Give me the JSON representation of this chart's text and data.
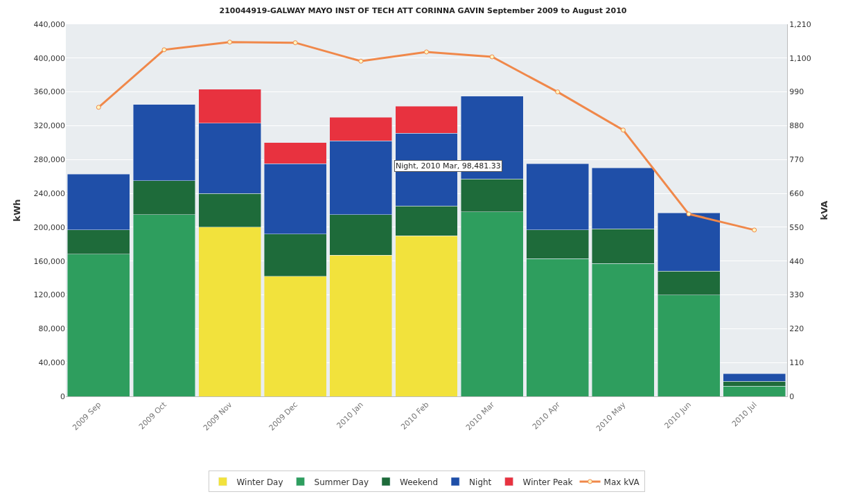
{
  "chart_data": {
    "type": "bar",
    "stacked": true,
    "title": "210044919-GALWAY MAYO INST OF TECH ATT CORINNA GAVIN September 2009 to August 2010",
    "ylabel": "kWh",
    "y2label": "kVA",
    "categories": [
      "2009 Sep",
      "2009 Oct",
      "2009 Nov",
      "2009 Dec",
      "2010 Jan",
      "2010 Feb",
      "2010 Mar",
      "2010 Apr",
      "2010 May",
      "2010 Jun",
      "2010 Jul"
    ],
    "series": [
      {
        "name": "Winter Day",
        "color": "#f2e23c",
        "values": [
          null,
          null,
          200000,
          142000,
          167000,
          190000,
          null,
          null,
          null,
          null,
          null
        ]
      },
      {
        "name": "Summer Day",
        "color": "#2e9e5e",
        "values": [
          168000,
          215000,
          null,
          null,
          null,
          null,
          218000,
          163000,
          157000,
          120000,
          12000
        ]
      },
      {
        "name": "Weekend",
        "color": "#1e6b3a",
        "values": [
          29000,
          40000,
          40000,
          50000,
          48000,
          35000,
          39000,
          34000,
          41000,
          28000,
          6000
        ]
      },
      {
        "name": "Night",
        "color": "#1f4fa8",
        "values": [
          66000,
          90000,
          83000,
          83000,
          87000,
          86000,
          98000,
          78000,
          72000,
          69000,
          9000
        ]
      },
      {
        "name": "Winter Peak",
        "color": "#e8323f",
        "values": [
          null,
          null,
          40000,
          25000,
          28000,
          32000,
          null,
          null,
          null,
          null,
          null
        ]
      },
      {
        "name": "Max kVA",
        "type": "line",
        "axis": "y2",
        "marker": "circle",
        "color": "#f0884a",
        "values": [
          940,
          1127,
          1152,
          1150,
          1090,
          1120,
          1104,
          990,
          866,
          593,
          541
        ]
      }
    ],
    "ylim": [
      0,
      440000
    ],
    "yticks": [
      0,
      {
        "value": 40000,
        "label": "40,000"
      },
      {
        "value": 80000,
        "label": "80,000"
      },
      {
        "value": 120000,
        "label": "120,000"
      },
      {
        "value": 160000,
        "label": "160,000"
      },
      {
        "value": 200000,
        "label": "200,000"
      },
      {
        "value": 240000,
        "label": "240,000"
      },
      {
        "value": 280000,
        "label": "280,000"
      },
      {
        "value": 320000,
        "label": "320,000"
      },
      {
        "value": 360000,
        "label": "360,000"
      },
      {
        "value": 400000,
        "label": "400,000"
      },
      {
        "value": 440000,
        "label": "440,000"
      }
    ],
    "y2lim": [
      0,
      1210
    ],
    "y2ticks": [
      0,
      110,
      220,
      330,
      440,
      550,
      660,
      770,
      880,
      990,
      {
        "value": 1100,
        "label": "1,100"
      },
      {
        "value": 1210,
        "label": "1,210"
      }
    ],
    "annotations": [
      "Night, 2010 Mar, 98,481.33"
    ],
    "grid": "y",
    "legend": "bottom"
  }
}
